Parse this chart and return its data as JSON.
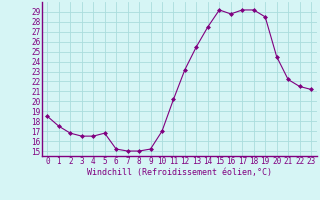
{
  "x": [
    0,
    1,
    2,
    3,
    4,
    5,
    6,
    7,
    8,
    9,
    10,
    11,
    12,
    13,
    14,
    15,
    16,
    17,
    18,
    19,
    20,
    21,
    22,
    23
  ],
  "y": [
    18.5,
    17.5,
    16.8,
    16.5,
    16.5,
    16.8,
    15.2,
    15.0,
    15.0,
    15.2,
    17.0,
    20.2,
    23.2,
    25.5,
    27.5,
    29.2,
    28.8,
    29.2,
    29.2,
    28.5,
    24.5,
    22.2,
    21.5,
    21.2
  ],
  "line_color": "#800080",
  "marker": "D",
  "marker_size": 2,
  "bg_color": "#d6f5f5",
  "grid_color": "#aadddd",
  "xlabel": "Windchill (Refroidissement éolien,°C)",
  "xlabel_color": "#800080",
  "xlabel_fontsize": 6.0,
  "tick_color": "#800080",
  "tick_fontsize": 5.5,
  "ylim": [
    14.5,
    30.0
  ],
  "yticks": [
    15,
    16,
    17,
    18,
    19,
    20,
    21,
    22,
    23,
    24,
    25,
    26,
    27,
    28,
    29
  ],
  "xlim": [
    -0.5,
    23.5
  ],
  "xticks": [
    0,
    1,
    2,
    3,
    4,
    5,
    6,
    7,
    8,
    9,
    10,
    11,
    12,
    13,
    14,
    15,
    16,
    17,
    18,
    19,
    20,
    21,
    22,
    23
  ]
}
